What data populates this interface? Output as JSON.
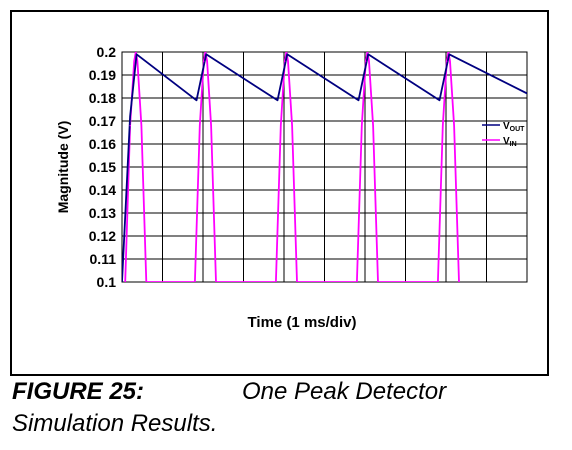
{
  "figure": {
    "label": "FIGURE 25:",
    "title_line1": "One Peak Detector",
    "title_line2": "Simulation Results."
  },
  "chart_data": {
    "type": "line",
    "xlabel": "Time (1 ms/div)",
    "ylabel": "Magnitude (V)",
    "ylim": [
      0.1,
      0.2
    ],
    "yticks": [
      "0.1",
      "0.11",
      "0.12",
      "0.13",
      "0.14",
      "0.15",
      "0.16",
      "0.17",
      "0.18",
      "0.19",
      "0.2"
    ],
    "xlim": [
      0,
      5
    ],
    "x_divisions": 10,
    "grid": true,
    "legend_position": "right",
    "series": [
      {
        "name": "VOUT",
        "legend_main": "V",
        "legend_sub": "OUT",
        "color": "#000080",
        "points": [
          [
            0.0,
            0.1
          ],
          [
            0.1,
            0.172
          ],
          [
            0.18,
            0.199
          ],
          [
            0.92,
            0.179
          ],
          [
            1.04,
            0.199
          ],
          [
            1.92,
            0.179
          ],
          [
            2.04,
            0.199
          ],
          [
            2.92,
            0.179
          ],
          [
            3.04,
            0.199
          ],
          [
            3.92,
            0.179
          ],
          [
            4.04,
            0.199
          ],
          [
            5.0,
            0.182
          ]
        ]
      },
      {
        "name": "VIN",
        "legend_main": "V",
        "legend_sub": "IN",
        "color": "#ff00ff",
        "points": [
          [
            0.04,
            0.1
          ],
          [
            0.1,
            0.168
          ],
          [
            0.15,
            0.196
          ],
          [
            0.17,
            0.2
          ],
          [
            0.19,
            0.196
          ],
          [
            0.24,
            0.168
          ],
          [
            0.3,
            0.1
          ],
          [
            0.9,
            0.1
          ],
          [
            0.96,
            0.168
          ],
          [
            1.01,
            0.196
          ],
          [
            1.03,
            0.2
          ],
          [
            1.05,
            0.196
          ],
          [
            1.1,
            0.168
          ],
          [
            1.16,
            0.1
          ],
          [
            1.9,
            0.1
          ],
          [
            1.96,
            0.168
          ],
          [
            2.01,
            0.196
          ],
          [
            2.03,
            0.2
          ],
          [
            2.05,
            0.196
          ],
          [
            2.1,
            0.168
          ],
          [
            2.16,
            0.1
          ],
          [
            2.9,
            0.1
          ],
          [
            2.96,
            0.168
          ],
          [
            3.01,
            0.196
          ],
          [
            3.03,
            0.2
          ],
          [
            3.05,
            0.196
          ],
          [
            3.1,
            0.168
          ],
          [
            3.16,
            0.1
          ],
          [
            3.9,
            0.1
          ],
          [
            3.96,
            0.168
          ],
          [
            4.01,
            0.196
          ],
          [
            4.03,
            0.2
          ],
          [
            4.05,
            0.196
          ],
          [
            4.1,
            0.168
          ],
          [
            4.16,
            0.1
          ]
        ]
      }
    ]
  }
}
